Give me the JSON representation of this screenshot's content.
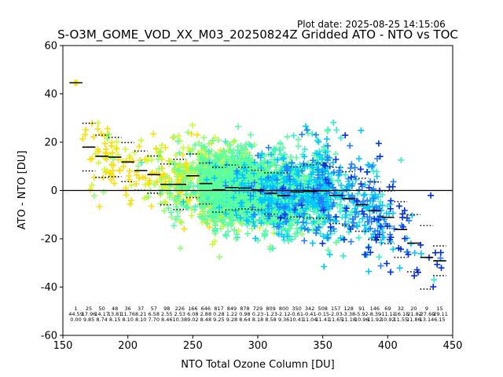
{
  "plot_date": "Plot date: 2025-08-25 14:15:06",
  "title": "S-O3M_GOME_VOD_XX_M03_20250824Z Gridded ATO - NTO vs TOC",
  "chart_data": {
    "type": "scatter",
    "title": "S-O3M_GOME_VOD_XX_M03_20250824Z Gridded ATO - NTO vs TOC",
    "xlabel": "NTO Total Ozone Column [DU]",
    "ylabel": "ATO - NTO [DU]",
    "xlim": [
      150,
      450
    ],
    "ylim": [
      -60,
      60
    ],
    "xticks": [
      150,
      200,
      250,
      300,
      350,
      400,
      450
    ],
    "yticks": [
      -60,
      -40,
      -20,
      0,
      20,
      40,
      60
    ],
    "grid": false,
    "zero_line": 0,
    "marker": "+",
    "colors": [
      "#ffdd00",
      "#c8ff30",
      "#90ff70",
      "#5cffa0",
      "#30f0d0",
      "#00c8ff",
      "#2080ff",
      "#0030e0"
    ],
    "stats_table": [
      {
        "x": 160,
        "n": "1",
        "mean": "44.59",
        "std": "0.00"
      },
      {
        "x": 170,
        "n": "25",
        "mean": "17.96",
        "std": "9.85"
      },
      {
        "x": 180,
        "n": "50",
        "mean": "14.17",
        "std": "8.74"
      },
      {
        "x": 190,
        "n": "48",
        "mean": "13.81",
        "std": "8.15"
      },
      {
        "x": 200,
        "n": "36",
        "mean": "11.76",
        "std": "8.10"
      },
      {
        "x": 210,
        "n": "37",
        "mean": "8.21",
        "std": "8.10"
      },
      {
        "x": 220,
        "n": "57",
        "mean": "6.58",
        "std": "7.70"
      },
      {
        "x": 230,
        "n": "98",
        "mean": "2.55",
        "std": "8.46"
      },
      {
        "x": 240,
        "n": "226",
        "mean": "2.53",
        "std": "10.38"
      },
      {
        "x": 250,
        "n": "166",
        "mean": "6.08",
        "std": "9.02"
      },
      {
        "x": 260,
        "n": "646",
        "mean": "2.88",
        "std": "8.48"
      },
      {
        "x": 270,
        "n": "817",
        "mean": "0.28",
        "std": "9.25"
      },
      {
        "x": 280,
        "n": "849",
        "mean": "1.22",
        "std": "9.28"
      },
      {
        "x": 290,
        "n": "878",
        "mean": "0.98",
        "std": "8.64"
      },
      {
        "x": 300,
        "n": "729",
        "mean": "0.23",
        "std": "8.18"
      },
      {
        "x": 310,
        "n": "809",
        "mean": "-1.23",
        "std": "8.58"
      },
      {
        "x": 320,
        "n": "800",
        "mean": "-2.12",
        "std": "9.36"
      },
      {
        "x": 330,
        "n": "350",
        "mean": "-0.61",
        "std": "10.41"
      },
      {
        "x": 340,
        "n": "342",
        "mean": "-0.41",
        "std": "11.04"
      },
      {
        "x": 350,
        "n": "508",
        "mean": "-0.15",
        "std": "11.41"
      },
      {
        "x": 360,
        "n": "157",
        "mean": "-2.03",
        "std": "11.65"
      },
      {
        "x": 370,
        "n": "128",
        "mean": "-3.38",
        "std": "11.18"
      },
      {
        "x": 380,
        "n": "91",
        "mean": "-5.92",
        "std": "10.96"
      },
      {
        "x": 390,
        "n": "146",
        "mean": "-8.39",
        "std": "11.92"
      },
      {
        "x": 400,
        "n": "69",
        "mean": "-11.11",
        "std": "10.92"
      },
      {
        "x": 410,
        "n": "32",
        "mean": "-16.15",
        "std": "11.55"
      },
      {
        "x": 420,
        "n": "20",
        "mean": "-21.82",
        "std": "11.86"
      },
      {
        "x": 430,
        "n": "9",
        "mean": "-27.69",
        "std": "13.14"
      },
      {
        "x": 440,
        "n": "15",
        "mean": "-29.11",
        "std": "6.15"
      }
    ]
  }
}
